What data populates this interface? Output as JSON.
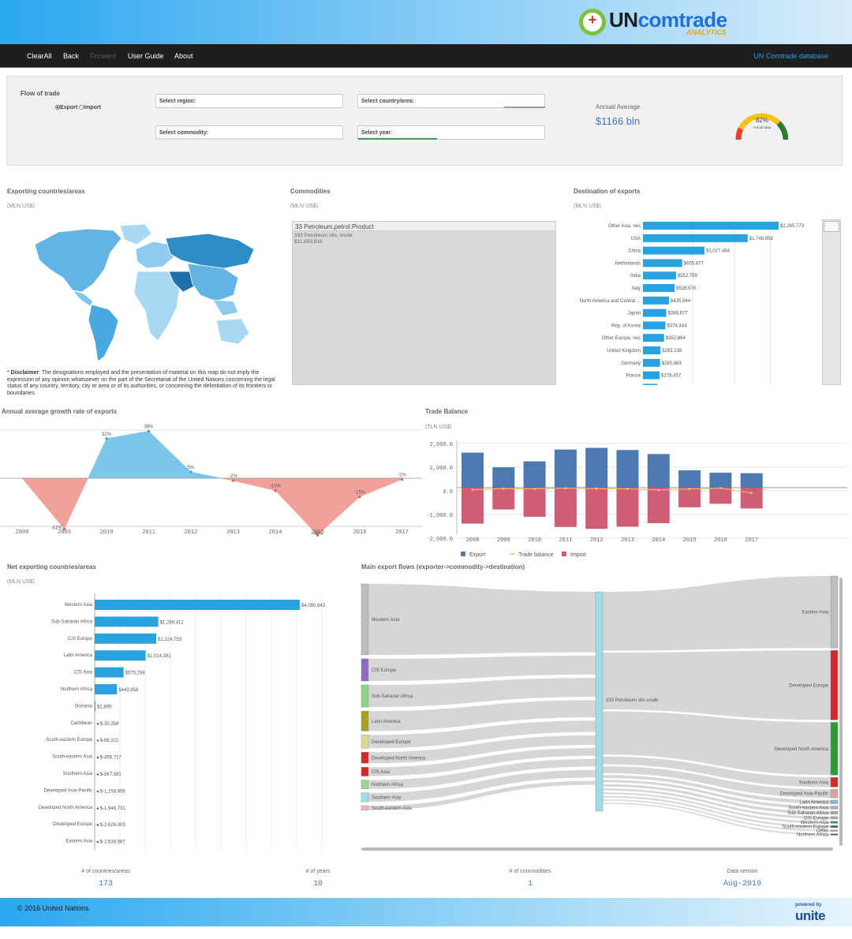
{
  "header": {
    "logo_main": "UN",
    "logo_brand": "comtrade",
    "logo_sub": "ANALYTICS"
  },
  "nav": {
    "items": [
      "ClearAll",
      "Back",
      "Forward",
      "User Guide",
      "About"
    ],
    "right_link": "UN Comtrade database"
  },
  "filters": {
    "flow_label": "Flow of trade",
    "flow_options": [
      "Export",
      "Import"
    ],
    "flow_selected": "Export",
    "region_label": "Select region:",
    "country_label": "Select country/area:",
    "commodity_label": "Select commodity:",
    "year_label": "Select year:"
  },
  "kpi": {
    "label": "Annual Average",
    "value": "$1166 bln",
    "gauge_value": "82%",
    "gauge_caption": "Actual data",
    "gauge_fraction": 0.82,
    "colors": {
      "red": "#e8412b",
      "yellow": "#f2c418",
      "green": "#2f7d32"
    }
  },
  "map_section": {
    "title": "Exporting countries/areas",
    "unit": "(MLN US$)",
    "disclaimer_bold": "Disclaimer",
    "disclaimer": ": The designations employed and the presentation of material on this map do not imply the expression of any opinion whatsoever on the part of the Secretariat of the United Nations concerning the legal status of any country, territory, city or area or of its authorities, or concerning the delimitation of its frontiers or boundaries."
  },
  "commodities": {
    "title": "Commodities",
    "unit": "(MLN US$)",
    "header": "33 Petroleum,petrol.Product",
    "item": "333 Petroleum oils, crude",
    "value": "$11,659,616"
  },
  "destination": {
    "title": "Destination of exports",
    "unit": "(MLN US$)",
    "chart_data": {
      "type": "bar",
      "orientation": "horizontal",
      "categories": [
        "Other Asia, nes",
        "USA",
        "China",
        "Netherlands",
        "India",
        "Italy",
        "North America and Central ...",
        "Japan",
        "Rep. of Korea",
        "Other Europe, nes",
        "United Kingdom",
        "Germany",
        "France"
      ],
      "values": [
        2265773,
        1748958,
        1027464,
        655877,
        552799,
        528576,
        435644,
        389677,
        374344,
        352864,
        293138,
        285863,
        278457
      ],
      "labels": [
        "$2,265,773",
        "$1,748,958",
        "$1,027,464",
        "$655,877",
        "$552,799",
        "$528,576",
        "$435,644",
        "$389,677",
        "$374,344",
        "$352,864",
        "$293,138",
        "$285,863",
        "$278,457"
      ],
      "color": "#29a3e0"
    }
  },
  "growth": {
    "title": "Annual average growth rate of exports",
    "chart_data": {
      "type": "area",
      "x": [
        "2008",
        "2009",
        "2010",
        "2011",
        "2012",
        "2013",
        "2014",
        "2015",
        "2016",
        "2017"
      ],
      "points": [
        {
          "year": "2009",
          "value": -41,
          "label": "-41%"
        },
        {
          "year": "2010",
          "value": 32,
          "label": "32%"
        },
        {
          "year": "2011",
          "value": 38,
          "label": "38%"
        },
        {
          "year": "2012",
          "value": 5,
          "label": "5%"
        },
        {
          "year": "2013",
          "value": -2,
          "label": "-2%"
        },
        {
          "year": "2014",
          "value": -10,
          "label": "-10%"
        },
        {
          "year": "2015",
          "value": -46,
          "label": "-46%"
        },
        {
          "year": "2016",
          "value": -15,
          "label": "-15%"
        },
        {
          "year": "2017",
          "value": -1,
          "label": "-1%"
        }
      ],
      "ylim": [
        -55,
        45
      ],
      "pos_color": "#7cc6ea",
      "neg_color": "#f2a19a"
    }
  },
  "balance": {
    "title": "Trade Balance",
    "unit": "(TLN US$)",
    "chart_data": {
      "type": "bar",
      "categories": [
        "2008",
        "2009",
        "2010",
        "2011",
        "2012",
        "2013",
        "2014",
        "2015",
        "2016",
        "2017"
      ],
      "yticks": [
        "2,000.0",
        "1,000.0",
        "0.0",
        "-1,000.0",
        "-2,000.0"
      ],
      "ylim": [
        -2300,
        2300
      ],
      "series": [
        {
          "name": "Export",
          "values": [
            1480,
            860,
            1110,
            1610,
            1680,
            1590,
            1420,
            730,
            630,
            610
          ],
          "color": "#4b79b0"
        },
        {
          "name": "Trade balance",
          "values": [
            -90,
            -40,
            -50,
            -20,
            -40,
            -50,
            -100,
            -60,
            -20,
            -230
          ],
          "color": "#e8c46a"
        },
        {
          "name": "Import",
          "values": [
            -1520,
            -920,
            -1230,
            -1660,
            -1740,
            -1650,
            -1500,
            -830,
            -680,
            -880
          ],
          "color": "#cf5e74"
        }
      ]
    }
  },
  "net": {
    "title": "Net exporting countries/areas",
    "unit": "(MLN US$)",
    "chart_data": {
      "type": "bar",
      "orientation": "horizontal",
      "categories": [
        "Western Asia",
        "Sub-Saharan Africa",
        "CIS Europe",
        "Latin America",
        "CIS Asia",
        "Northern Africa",
        "Oceania",
        "Caribbean",
        "South-eastern Europe",
        "South-eastern Asia",
        "Southern Asia",
        "Developed Asia-Pacific",
        "Developed North America",
        "Developed Europe",
        "Eastern Asia"
      ],
      "values": [
        4080643,
        1266412,
        1224753,
        1014391,
        575298,
        443958,
        1895,
        -35358,
        -88322,
        -456717,
        -567581,
        -1158956,
        -1948731,
        -2626003,
        -2638567
      ],
      "labels": [
        "$4,080,643",
        "$1,266,412",
        "$1,224,753",
        "$1,014,391",
        "$575,298",
        "$443,958",
        "$1,895",
        "$-35,358",
        "$-88,322",
        "$-456,717",
        "$-567,581",
        "$-1,158,956",
        "$-1,948,731",
        "$-2,626,003",
        "$-2,638,567"
      ],
      "color": "#29a3e0"
    }
  },
  "sankey": {
    "title": "Main export flows (exporter->commodity->destination)",
    "sources": [
      {
        "name": "Western Asia",
        "share": 0.32,
        "color": "#bdbdbd"
      },
      {
        "name": "CIS Europe",
        "share": 0.1,
        "color": "#8e6bbf"
      },
      {
        "name": "Sub-Saharan Africa",
        "share": 0.1,
        "color": "#8fd18a"
      },
      {
        "name": "Latin America",
        "share": 0.09,
        "color": "#a8a021"
      },
      {
        "name": "Developed Europe",
        "share": 0.06,
        "color": "#d8d89a"
      },
      {
        "name": "Developed North America",
        "share": 0.05,
        "color": "#d9262b"
      },
      {
        "name": "CIS Asia",
        "share": 0.04,
        "color": "#d9262b"
      },
      {
        "name": "Northern Africa",
        "share": 0.04,
        "color": "#9fd88f"
      },
      {
        "name": "Southern Asia",
        "share": 0.04,
        "color": "#9fdde6"
      },
      {
        "name": "South-eastern Asia",
        "share": 0.02,
        "color": "#f4b6c3"
      }
    ],
    "middle": {
      "name": "333 Petroleum oils crude",
      "color": "#9fdde6"
    },
    "targets": [
      {
        "name": "Eastern Asia",
        "share": 0.3,
        "color": "#bdbdbd"
      },
      {
        "name": "Developed Europe",
        "share": 0.29,
        "color": "#d9262b"
      },
      {
        "name": "Developed North America",
        "share": 0.22,
        "color": "#2e9b36"
      },
      {
        "name": "Southern Asia",
        "share": 0.04,
        "color": "#d9262b"
      },
      {
        "name": "Developed Asia-Pacific",
        "share": 0.035,
        "color": "#d6a5a0"
      },
      {
        "name": "Latin America",
        "share": 0.015,
        "color": "#8fb0e0"
      },
      {
        "name": "South-eastern Asia",
        "share": 0.012,
        "color": "#b7a0d8"
      },
      {
        "name": "Sub-Saharan Africa",
        "share": 0.012,
        "color": "#aaa"
      },
      {
        "name": "CIS Europe",
        "share": 0.01,
        "color": "#aaa"
      },
      {
        "name": "Western Asia",
        "share": 0.008,
        "color": "#2e9b36"
      },
      {
        "name": "South-eastern Europe",
        "share": 0.008,
        "color": "#555"
      },
      {
        "name": "Other",
        "share": 0.006,
        "color": "#aaa"
      },
      {
        "name": "Northern Africa",
        "share": 0.006,
        "color": "#555"
      }
    ]
  },
  "stats": [
    {
      "label": "# of countries/areas",
      "value": "173"
    },
    {
      "label": "# of years",
      "value": "10"
    },
    {
      "label": "# of commodities",
      "value": "1"
    },
    {
      "label": "Data version",
      "value": "Aug-2019"
    }
  ],
  "footer": {
    "copyright": "© 2016 United Nations",
    "powered": "powered by",
    "brand": "unite"
  }
}
